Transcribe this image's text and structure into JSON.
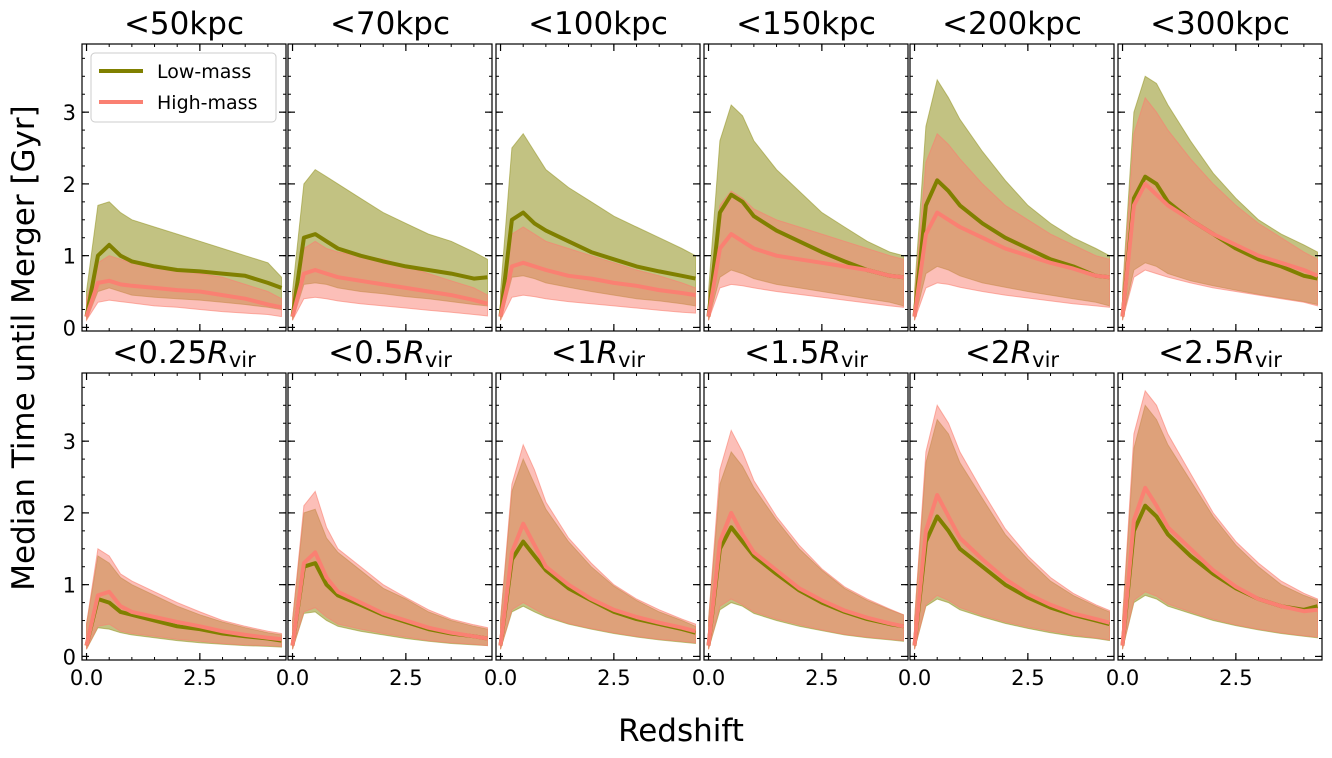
{
  "chart_data": {
    "type": "line",
    "layout": "2 rows x 6 columns, shared axes",
    "xlabel": "Redshift",
    "ylabel": "Median Time until Merger [Gyr]",
    "xlim": [
      -0.1,
      4.4
    ],
    "ylim": [
      -0.05,
      3.95
    ],
    "xticks": [
      "0.0",
      "2.5"
    ],
    "xtick_values": [
      0,
      2.5
    ],
    "yticks": [
      "0",
      "1",
      "2",
      "3"
    ],
    "ytick_values": [
      0,
      1,
      2,
      3
    ],
    "legend": {
      "placement": "upper-left of first panel",
      "entries": [
        "Low-mass",
        "High-mass"
      ]
    },
    "colors": {
      "low": "#808000",
      "high": "#fa8072",
      "low_fill": "#9a9a2f",
      "high_fill": "#fa8072"
    },
    "x": [
      0.0,
      0.25,
      0.5,
      0.75,
      1.0,
      1.5,
      2.0,
      2.5,
      3.0,
      3.5,
      4.0,
      4.3
    ],
    "panels": [
      {
        "title": "<50kpc",
        "title_sub": "",
        "low": {
          "median": [
            0.15,
            1.0,
            1.15,
            1.0,
            0.92,
            0.85,
            0.8,
            0.78,
            0.75,
            0.72,
            0.62,
            0.55
          ],
          "upper": [
            0.5,
            1.7,
            1.75,
            1.6,
            1.5,
            1.4,
            1.3,
            1.2,
            1.1,
            1.0,
            0.9,
            0.7
          ],
          "lower": [
            0.1,
            0.5,
            0.55,
            0.5,
            0.45,
            0.42,
            0.4,
            0.38,
            0.35,
            0.32,
            0.28,
            0.25
          ]
        },
        "high": {
          "median": [
            0.15,
            0.62,
            0.65,
            0.6,
            0.58,
            0.55,
            0.52,
            0.5,
            0.45,
            0.4,
            0.32,
            0.28
          ],
          "upper": [
            0.4,
            0.9,
            1.0,
            0.95,
            0.9,
            0.85,
            0.8,
            0.75,
            0.7,
            0.6,
            0.5,
            0.4
          ],
          "lower": [
            0.1,
            0.35,
            0.38,
            0.36,
            0.34,
            0.3,
            0.28,
            0.25,
            0.22,
            0.2,
            0.18,
            0.15
          ]
        }
      },
      {
        "title": "<70kpc",
        "title_sub": "",
        "low": {
          "median": [
            0.15,
            1.25,
            1.3,
            1.2,
            1.1,
            1.0,
            0.92,
            0.85,
            0.8,
            0.75,
            0.68,
            0.7
          ],
          "upper": [
            0.5,
            2.0,
            2.2,
            2.1,
            2.0,
            1.8,
            1.6,
            1.45,
            1.3,
            1.2,
            1.05,
            0.95
          ],
          "lower": [
            0.1,
            0.6,
            0.62,
            0.6,
            0.55,
            0.5,
            0.47,
            0.43,
            0.4,
            0.36,
            0.32,
            0.3
          ]
        },
        "high": {
          "median": [
            0.15,
            0.75,
            0.8,
            0.75,
            0.7,
            0.65,
            0.6,
            0.55,
            0.5,
            0.45,
            0.38,
            0.33
          ],
          "upper": [
            0.4,
            1.1,
            1.2,
            1.1,
            1.05,
            1.0,
            0.95,
            0.85,
            0.75,
            0.65,
            0.55,
            0.45
          ],
          "lower": [
            0.1,
            0.4,
            0.42,
            0.4,
            0.37,
            0.33,
            0.3,
            0.27,
            0.24,
            0.21,
            0.18,
            0.16
          ]
        }
      },
      {
        "title": "<100kpc",
        "title_sub": "",
        "low": {
          "median": [
            0.15,
            1.5,
            1.6,
            1.45,
            1.35,
            1.2,
            1.05,
            0.95,
            0.85,
            0.78,
            0.72,
            0.68
          ],
          "upper": [
            0.5,
            2.5,
            2.7,
            2.45,
            2.2,
            1.95,
            1.75,
            1.55,
            1.4,
            1.25,
            1.1,
            1.0
          ],
          "lower": [
            0.1,
            0.7,
            0.72,
            0.68,
            0.62,
            0.56,
            0.5,
            0.45,
            0.4,
            0.37,
            0.33,
            0.3
          ]
        },
        "high": {
          "median": [
            0.15,
            0.85,
            0.9,
            0.85,
            0.8,
            0.72,
            0.68,
            0.62,
            0.58,
            0.52,
            0.48,
            0.45
          ],
          "upper": [
            0.4,
            1.3,
            1.4,
            1.3,
            1.2,
            1.1,
            1.0,
            0.9,
            0.8,
            0.72,
            0.62,
            0.55
          ],
          "lower": [
            0.1,
            0.42,
            0.45,
            0.43,
            0.4,
            0.36,
            0.33,
            0.3,
            0.27,
            0.24,
            0.21,
            0.2
          ]
        }
      },
      {
        "title": "<150kpc",
        "title_sub": "",
        "low": {
          "median": [
            0.15,
            1.6,
            1.85,
            1.75,
            1.55,
            1.35,
            1.2,
            1.05,
            0.92,
            0.8,
            0.72,
            0.7
          ],
          "upper": [
            0.5,
            2.6,
            3.1,
            2.95,
            2.6,
            2.2,
            1.9,
            1.6,
            1.4,
            1.2,
            1.05,
            1.0
          ],
          "lower": [
            0.1,
            0.7,
            0.8,
            0.75,
            0.68,
            0.6,
            0.55,
            0.5,
            0.45,
            0.4,
            0.35,
            0.3
          ]
        },
        "high": {
          "median": [
            0.15,
            1.1,
            1.3,
            1.2,
            1.1,
            1.0,
            0.95,
            0.9,
            0.85,
            0.8,
            0.72,
            0.7
          ],
          "upper": [
            0.4,
            1.7,
            1.9,
            1.8,
            1.65,
            1.5,
            1.4,
            1.3,
            1.2,
            1.1,
            1.0,
            0.95
          ],
          "lower": [
            0.1,
            0.55,
            0.6,
            0.58,
            0.55,
            0.5,
            0.46,
            0.42,
            0.38,
            0.34,
            0.3,
            0.28
          ]
        }
      },
      {
        "title": "<200kpc",
        "title_sub": "",
        "low": {
          "median": [
            0.15,
            1.7,
            2.05,
            1.9,
            1.7,
            1.45,
            1.25,
            1.1,
            0.95,
            0.85,
            0.72,
            0.7
          ],
          "upper": [
            0.5,
            2.8,
            3.45,
            3.2,
            2.9,
            2.45,
            2.05,
            1.7,
            1.45,
            1.25,
            1.1,
            1.0
          ],
          "lower": [
            0.1,
            0.75,
            0.85,
            0.8,
            0.72,
            0.62,
            0.56,
            0.5,
            0.45,
            0.4,
            0.35,
            0.3
          ]
        },
        "high": {
          "median": [
            0.15,
            1.3,
            1.6,
            1.5,
            1.4,
            1.25,
            1.1,
            1.0,
            0.9,
            0.82,
            0.72,
            0.7
          ],
          "upper": [
            0.4,
            2.3,
            2.7,
            2.55,
            2.35,
            2.0,
            1.7,
            1.5,
            1.3,
            1.15,
            1.0,
            0.95
          ],
          "lower": [
            0.1,
            0.55,
            0.62,
            0.6,
            0.56,
            0.5,
            0.45,
            0.41,
            0.37,
            0.33,
            0.3,
            0.28
          ]
        }
      },
      {
        "title": "<300kpc",
        "title_sub": "",
        "low": {
          "median": [
            0.15,
            1.8,
            2.1,
            2.0,
            1.75,
            1.5,
            1.3,
            1.1,
            0.95,
            0.85,
            0.72,
            0.68
          ],
          "upper": [
            0.5,
            3.0,
            3.5,
            3.4,
            3.1,
            2.6,
            2.15,
            1.8,
            1.5,
            1.3,
            1.15,
            1.05
          ],
          "lower": [
            0.1,
            0.8,
            0.9,
            0.85,
            0.75,
            0.65,
            0.58,
            0.52,
            0.46,
            0.41,
            0.36,
            0.32
          ]
        },
        "high": {
          "median": [
            0.15,
            1.7,
            2.0,
            1.85,
            1.7,
            1.5,
            1.3,
            1.15,
            1.0,
            0.9,
            0.8,
            0.72
          ],
          "upper": [
            0.4,
            2.7,
            3.2,
            3.0,
            2.75,
            2.35,
            2.0,
            1.7,
            1.45,
            1.25,
            1.05,
            0.95
          ],
          "lower": [
            0.1,
            0.7,
            0.8,
            0.75,
            0.7,
            0.62,
            0.55,
            0.5,
            0.45,
            0.4,
            0.35,
            0.3
          ]
        }
      },
      {
        "title": "<0.25",
        "title_sub": "vir",
        "low": {
          "median": [
            0.15,
            0.8,
            0.75,
            0.62,
            0.58,
            0.5,
            0.42,
            0.38,
            0.32,
            0.28,
            0.25,
            0.22
          ],
          "upper": [
            0.45,
            1.4,
            1.3,
            1.1,
            1.0,
            0.85,
            0.7,
            0.58,
            0.48,
            0.4,
            0.33,
            0.3
          ],
          "lower": [
            0.1,
            0.4,
            0.38,
            0.33,
            0.3,
            0.26,
            0.22,
            0.19,
            0.17,
            0.15,
            0.14,
            0.13
          ]
        },
        "high": {
          "median": [
            0.15,
            0.85,
            0.9,
            0.7,
            0.62,
            0.55,
            0.48,
            0.42,
            0.35,
            0.3,
            0.26,
            0.24
          ],
          "upper": [
            0.45,
            1.5,
            1.4,
            1.15,
            1.05,
            0.9,
            0.75,
            0.62,
            0.5,
            0.42,
            0.35,
            0.32
          ],
          "lower": [
            0.1,
            0.42,
            0.45,
            0.35,
            0.32,
            0.28,
            0.24,
            0.21,
            0.18,
            0.16,
            0.15,
            0.14
          ]
        }
      },
      {
        "title": "<0.5",
        "title_sub": "vir",
        "low": {
          "median": [
            0.15,
            1.25,
            1.3,
            1.0,
            0.85,
            0.72,
            0.58,
            0.48,
            0.38,
            0.32,
            0.28,
            0.25
          ],
          "upper": [
            0.5,
            2.0,
            2.05,
            1.65,
            1.45,
            1.2,
            0.95,
            0.8,
            0.62,
            0.5,
            0.42,
            0.38
          ],
          "lower": [
            0.1,
            0.6,
            0.62,
            0.5,
            0.42,
            0.35,
            0.3,
            0.25,
            0.21,
            0.18,
            0.16,
            0.15
          ]
        },
        "high": {
          "median": [
            0.15,
            1.3,
            1.45,
            1.1,
            0.9,
            0.75,
            0.6,
            0.5,
            0.4,
            0.33,
            0.28,
            0.25
          ],
          "upper": [
            0.5,
            2.1,
            2.3,
            1.8,
            1.5,
            1.25,
            1.0,
            0.82,
            0.65,
            0.52,
            0.44,
            0.4
          ],
          "lower": [
            0.1,
            0.62,
            0.68,
            0.55,
            0.45,
            0.38,
            0.32,
            0.27,
            0.22,
            0.19,
            0.17,
            0.15
          ]
        }
      },
      {
        "title": "<1",
        "title_sub": "vir",
        "low": {
          "median": [
            0.15,
            1.35,
            1.6,
            1.4,
            1.2,
            0.95,
            0.78,
            0.62,
            0.52,
            0.45,
            0.38,
            0.33
          ],
          "upper": [
            0.5,
            2.3,
            2.75,
            2.4,
            2.05,
            1.6,
            1.25,
            0.98,
            0.78,
            0.62,
            0.5,
            0.42
          ],
          "lower": [
            0.1,
            0.62,
            0.7,
            0.62,
            0.55,
            0.45,
            0.38,
            0.32,
            0.27,
            0.23,
            0.2,
            0.18
          ]
        },
        "high": {
          "median": [
            0.15,
            1.45,
            1.85,
            1.55,
            1.25,
            1.0,
            0.8,
            0.65,
            0.55,
            0.47,
            0.4,
            0.35
          ],
          "upper": [
            0.5,
            2.4,
            2.95,
            2.6,
            2.15,
            1.65,
            1.3,
            1.0,
            0.8,
            0.65,
            0.52,
            0.45
          ],
          "lower": [
            0.1,
            0.65,
            0.75,
            0.66,
            0.57,
            0.46,
            0.39,
            0.33,
            0.28,
            0.24,
            0.21,
            0.19
          ]
        }
      },
      {
        "title": "<1.5",
        "title_sub": "vir",
        "low": {
          "median": [
            0.15,
            1.5,
            1.8,
            1.6,
            1.4,
            1.15,
            0.92,
            0.75,
            0.62,
            0.52,
            0.45,
            0.42
          ],
          "upper": [
            0.5,
            2.4,
            2.85,
            2.65,
            2.35,
            1.9,
            1.5,
            1.2,
            0.95,
            0.78,
            0.65,
            0.58
          ],
          "lower": [
            0.1,
            0.65,
            0.75,
            0.7,
            0.6,
            0.5,
            0.42,
            0.36,
            0.3,
            0.26,
            0.23,
            0.21
          ]
        },
        "high": {
          "median": [
            0.15,
            1.6,
            2.0,
            1.7,
            1.45,
            1.2,
            0.95,
            0.78,
            0.64,
            0.54,
            0.46,
            0.42
          ],
          "upper": [
            0.5,
            2.6,
            3.15,
            2.85,
            2.45,
            1.95,
            1.55,
            1.22,
            0.97,
            0.8,
            0.66,
            0.58
          ],
          "lower": [
            0.1,
            0.7,
            0.8,
            0.72,
            0.62,
            0.52,
            0.44,
            0.37,
            0.31,
            0.27,
            0.24,
            0.22
          ]
        }
      },
      {
        "title": "<2",
        "title_sub": "vir",
        "low": {
          "median": [
            0.15,
            1.6,
            1.95,
            1.75,
            1.5,
            1.25,
            1.0,
            0.82,
            0.68,
            0.58,
            0.5,
            0.45
          ],
          "upper": [
            0.5,
            2.7,
            3.3,
            3.1,
            2.7,
            2.2,
            1.7,
            1.35,
            1.05,
            0.85,
            0.7,
            0.62
          ],
          "lower": [
            0.1,
            0.7,
            0.8,
            0.75,
            0.65,
            0.55,
            0.46,
            0.39,
            0.33,
            0.28,
            0.25,
            0.22
          ]
        },
        "high": {
          "median": [
            0.15,
            1.75,
            2.25,
            1.95,
            1.65,
            1.35,
            1.08,
            0.87,
            0.72,
            0.6,
            0.52,
            0.47
          ],
          "upper": [
            0.5,
            2.85,
            3.5,
            3.25,
            2.85,
            2.3,
            1.78,
            1.4,
            1.1,
            0.88,
            0.72,
            0.64
          ],
          "lower": [
            0.1,
            0.72,
            0.85,
            0.78,
            0.68,
            0.57,
            0.48,
            0.41,
            0.35,
            0.3,
            0.26,
            0.23
          ]
        }
      },
      {
        "title": "<2.5",
        "title_sub": "vir",
        "low": {
          "median": [
            0.15,
            1.75,
            2.1,
            1.95,
            1.7,
            1.4,
            1.15,
            0.95,
            0.8,
            0.7,
            0.65,
            0.7
          ],
          "upper": [
            0.5,
            2.9,
            3.5,
            3.3,
            2.95,
            2.45,
            1.95,
            1.55,
            1.25,
            1.0,
            0.85,
            0.78
          ],
          "lower": [
            0.1,
            0.75,
            0.85,
            0.8,
            0.7,
            0.6,
            0.5,
            0.43,
            0.37,
            0.32,
            0.28,
            0.26
          ]
        },
        "high": {
          "median": [
            0.15,
            1.9,
            2.35,
            2.1,
            1.8,
            1.5,
            1.2,
            0.97,
            0.8,
            0.7,
            0.63,
            0.65
          ],
          "upper": [
            0.5,
            3.1,
            3.7,
            3.5,
            3.1,
            2.55,
            2.0,
            1.6,
            1.3,
            1.05,
            0.88,
            0.8
          ],
          "lower": [
            0.1,
            0.78,
            0.9,
            0.84,
            0.73,
            0.62,
            0.52,
            0.44,
            0.38,
            0.33,
            0.29,
            0.27
          ]
        }
      }
    ]
  }
}
